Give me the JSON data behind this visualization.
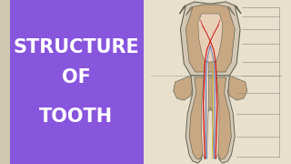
{
  "title_lines": [
    "STRUCTURE",
    "OF",
    "TOOTH"
  ],
  "title_color": "#ffffff",
  "title_bg_color": "#8855DD",
  "right_bg_color": "#cfc8b0",
  "paper_color": "#e8e0cc",
  "enamel_color": "#d4c8b4",
  "dentin_color": "#c8a882",
  "pulp_color": "#e8d0b8",
  "root_outer_color": "#c0a070",
  "nerve_red": "#cc1111",
  "nerve_blue": "#3366cc",
  "nerve_yellow": "#ddbb00",
  "outline_color": "#666655",
  "label_line_color": "#888880",
  "font_size_title": 15
}
